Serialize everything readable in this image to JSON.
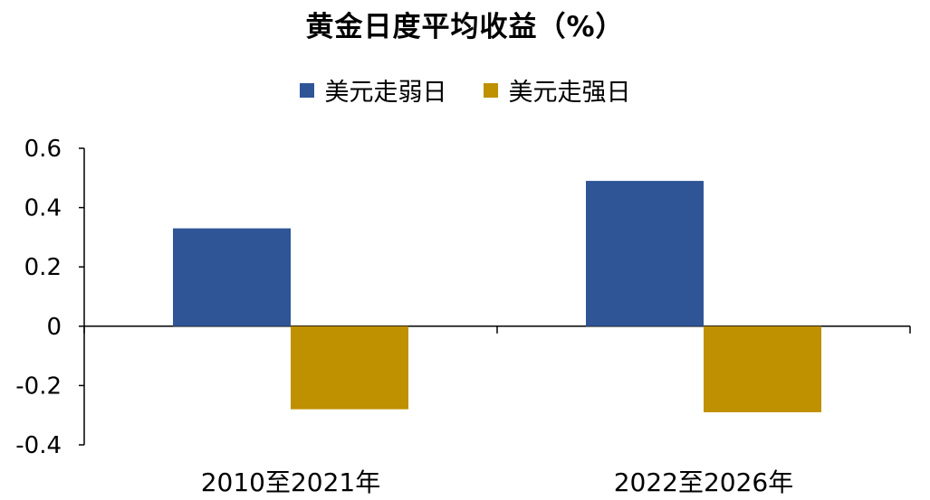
{
  "chart_data": {
    "type": "bar",
    "title": "黄金日度平均收益（%）",
    "categories": [
      "2010至2021年",
      "2022至2026年"
    ],
    "series": [
      {
        "name": "美元走弱日",
        "values": [
          0.33,
          0.49
        ],
        "color": "#2F5597"
      },
      {
        "name": "美元走强日",
        "values": [
          -0.28,
          -0.29
        ],
        "color": "#BF9000"
      }
    ],
    "ylim": [
      -0.4,
      0.6
    ],
    "yticks": [
      "0.6",
      "0.4",
      "0.2",
      "0",
      "-0.2",
      "-0.4"
    ],
    "ytick_values": [
      0.6,
      0.4,
      0.2,
      0,
      -0.2,
      -0.4
    ],
    "xlabel": "",
    "ylabel": "",
    "legend_position": "top-center",
    "grid": false
  }
}
